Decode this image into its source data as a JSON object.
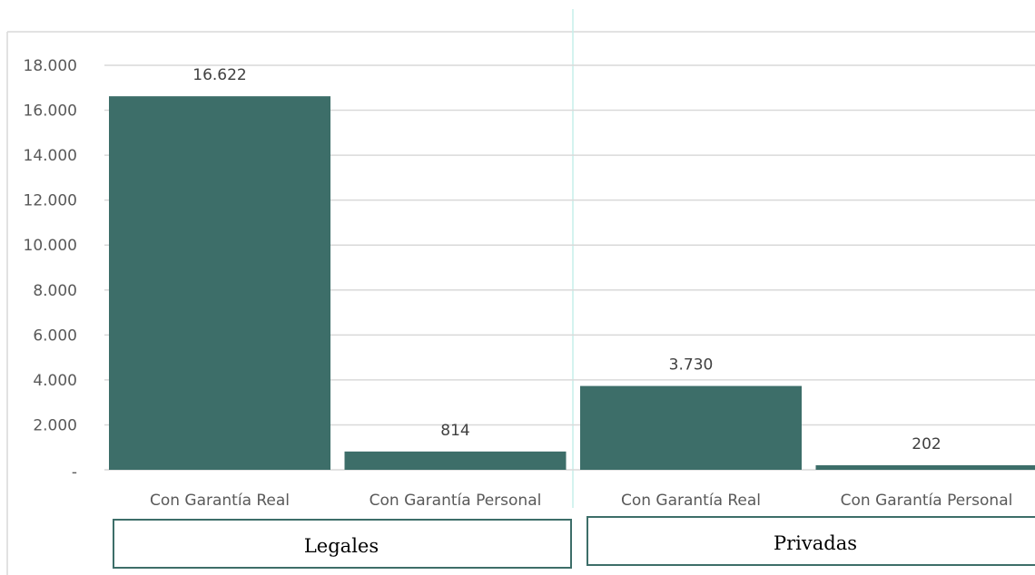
{
  "chart_data": {
    "type": "bar",
    "title": "",
    "xlabel": "",
    "ylabel": "",
    "ylim": [
      0,
      18000
    ],
    "yticks": [
      0,
      2000,
      4000,
      6000,
      8000,
      10000,
      12000,
      14000,
      16000,
      18000
    ],
    "ytick_labels": [
      "-",
      "2.000",
      "4.000",
      "6.000",
      "8.000",
      "10.000",
      "12.000",
      "14.000",
      "16.000",
      "18.000"
    ],
    "grid": true,
    "legend": "none",
    "groups": [
      {
        "label": "Legales",
        "categories": [
          "Con Garantía Real",
          "Con Garantía Personal"
        ]
      },
      {
        "label": "Privadas",
        "categories": [
          "Con Garantía Real",
          "Con Garantía Personal"
        ]
      }
    ],
    "categories": [
      "Con Garantía Real",
      "Con Garantía Personal",
      "Con Garantía Real",
      "Con Garantía Personal"
    ],
    "values": [
      16622,
      814,
      3730,
      202
    ],
    "value_labels": [
      "16.622",
      "814",
      "3.730",
      "202"
    ],
    "colors": {
      "bar": "#3d6e69",
      "grid": "#d9d9d9",
      "frame": "#d9d9d9",
      "group_box": "#3d6e69",
      "separator": "#c6efea"
    }
  }
}
